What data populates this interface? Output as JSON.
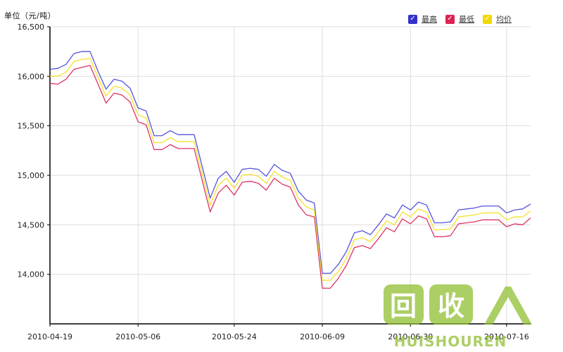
{
  "unit_label": "单位（元/吨）",
  "watermark": {
    "logo_text": "回收",
    "brand_text": "HUISHOUREN"
  },
  "legend": [
    {
      "name": "最高",
      "color": "#4444dd",
      "checkmark": "✓"
    },
    {
      "name": "最低",
      "color": "#dd2255",
      "checkmark": "✓"
    },
    {
      "name": "均价",
      "color": "#f0d800",
      "checkmark": "✓"
    }
  ],
  "chart_data": {
    "type": "line",
    "title": "",
    "xlabel": "",
    "ylabel": "单位（元/吨）",
    "ylim": [
      13500,
      16500
    ],
    "yticks": [
      14000,
      14500,
      15000,
      15500,
      16000,
      16500
    ],
    "ytick_labels": [
      "14,000",
      "14,500",
      "15,000",
      "15,500",
      "16,000",
      "16,500"
    ],
    "grid": true,
    "legend_position": "top-right",
    "xticks": [
      {
        "index": 0,
        "label": "2010-04-19"
      },
      {
        "index": 11,
        "label": "2010-05-06"
      },
      {
        "index": 23,
        "label": "2010-05-24"
      },
      {
        "index": 34,
        "label": "2010-06-09"
      },
      {
        "index": 45,
        "label": "2010-06-30"
      },
      {
        "index": 57,
        "label": "2010-07-16"
      }
    ],
    "series": [
      {
        "name": "最高",
        "color": "#5555dd",
        "values": [
          16070,
          16080,
          16120,
          16230,
          16250,
          16250,
          16050,
          15870,
          15970,
          15950,
          15880,
          15680,
          15650,
          15400,
          15400,
          15450,
          15410,
          15410,
          15410,
          15090,
          14770,
          14970,
          15040,
          14930,
          15060,
          15070,
          15060,
          14990,
          15110,
          15050,
          15020,
          14840,
          14750,
          14720,
          14010,
          14010,
          14100,
          14230,
          14420,
          14440,
          14400,
          14500,
          14610,
          14570,
          14700,
          14650,
          14730,
          14700,
          14520,
          14520,
          14530,
          14650,
          14660,
          14670,
          14690,
          14690,
          14690,
          14620,
          14650,
          14660,
          14710
        ]
      },
      {
        "name": "最低",
        "color": "#dd3366",
        "values": [
          15930,
          15920,
          15970,
          16070,
          16090,
          16110,
          15920,
          15730,
          15830,
          15810,
          15740,
          15540,
          15510,
          15260,
          15260,
          15310,
          15270,
          15270,
          15270,
          14950,
          14630,
          14820,
          14900,
          14800,
          14930,
          14940,
          14920,
          14850,
          14970,
          14910,
          14880,
          14700,
          14600,
          14580,
          13860,
          13860,
          13960,
          14090,
          14270,
          14290,
          14260,
          14360,
          14470,
          14430,
          14560,
          14510,
          14590,
          14560,
          14380,
          14380,
          14390,
          14510,
          14520,
          14530,
          14550,
          14550,
          14550,
          14480,
          14510,
          14500,
          14570
        ]
      },
      {
        "name": "均价",
        "color": "#f5e22a",
        "values": [
          16000,
          16000,
          16040,
          16150,
          16170,
          16180,
          15990,
          15800,
          15900,
          15880,
          15810,
          15610,
          15580,
          15330,
          15330,
          15380,
          15340,
          15340,
          15340,
          15020,
          14700,
          14900,
          14970,
          14870,
          15000,
          15010,
          14990,
          14920,
          15040,
          14980,
          14950,
          14770,
          14680,
          14650,
          13940,
          13940,
          14030,
          14160,
          14350,
          14370,
          14330,
          14430,
          14540,
          14500,
          14630,
          14580,
          14660,
          14630,
          14450,
          14450,
          14460,
          14580,
          14590,
          14600,
          14620,
          14620,
          14620,
          14550,
          14580,
          14580,
          14640
        ]
      }
    ]
  }
}
